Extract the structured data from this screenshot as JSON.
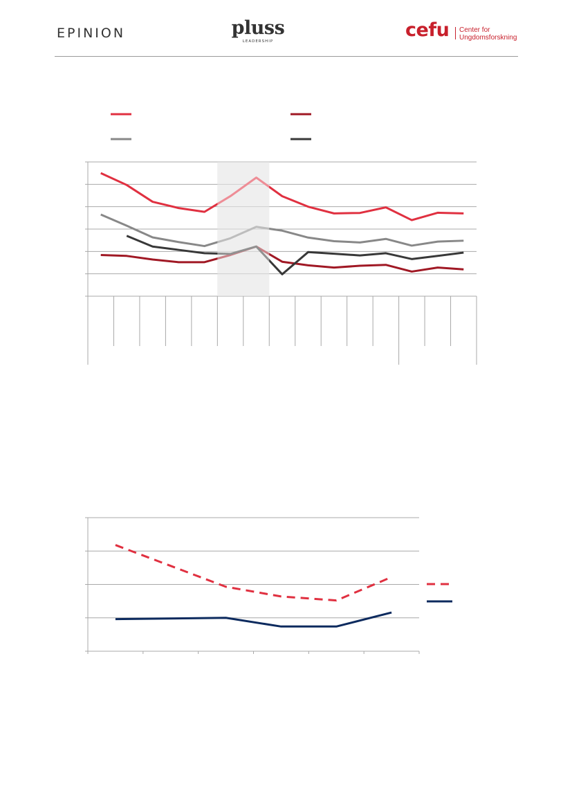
{
  "header": {
    "epinion_logo": "EPINION",
    "pluss_logo": "pluss",
    "pluss_tagline": "LEADERSHIP",
    "cefu_logo": "cefu",
    "cefu_tagline_line1": "Center for",
    "cefu_tagline_line2": "Ungdomsforskning"
  },
  "colors": {
    "bright_red": "#e03040",
    "dark_red": "#a01824",
    "gray": "#888888",
    "dark_gray": "#383838",
    "navy": "#0c2a5e",
    "highlight_band": "#e2e2e2",
    "gridline": "#a8a8a8"
  },
  "chart_data": [
    {
      "type": "line",
      "categories_count": 15,
      "highlighted_category_range": [
        5,
        6
      ],
      "ylim": [
        0,
        6
      ],
      "grid": true,
      "legend_position": "top",
      "series": [
        {
          "color": "#e03040",
          "values": [
            5.5,
            4.97,
            4.22,
            3.94,
            3.77,
            4.47,
            5.3,
            4.47,
            4.0,
            3.7,
            3.72,
            3.97,
            3.4,
            3.73,
            3.7
          ]
        },
        {
          "color": "#a01824",
          "values": [
            1.84,
            1.8,
            1.64,
            1.52,
            1.52,
            1.84,
            2.22,
            1.54,
            1.38,
            1.28,
            1.36,
            1.4,
            1.1,
            1.28,
            1.2
          ]
        },
        {
          "color": "#888888",
          "values": [
            3.65,
            3.15,
            2.63,
            2.42,
            2.24,
            2.59,
            3.1,
            2.93,
            2.62,
            2.46,
            2.4,
            2.56,
            2.26,
            2.44,
            2.48
          ]
        },
        {
          "color": "#383838",
          "values": [
            null,
            2.7,
            2.22,
            2.07,
            1.92,
            1.89,
            2.22,
            0.98,
            1.97,
            1.9,
            1.82,
            1.92,
            1.66,
            1.8,
            1.95
          ]
        }
      ]
    },
    {
      "type": "line",
      "categories_count": 6,
      "ylim": [
        0,
        4
      ],
      "grid": true,
      "legend_position": "right",
      "series": [
        {
          "color": "#e03040",
          "dashed": true,
          "values": [
            3.18,
            null,
            1.93,
            1.64,
            1.52,
            2.22
          ]
        },
        {
          "color": "#0c2a5e",
          "dashed": false,
          "values": [
            0.96,
            null,
            1.0,
            0.74,
            0.74,
            1.16
          ]
        }
      ]
    }
  ]
}
